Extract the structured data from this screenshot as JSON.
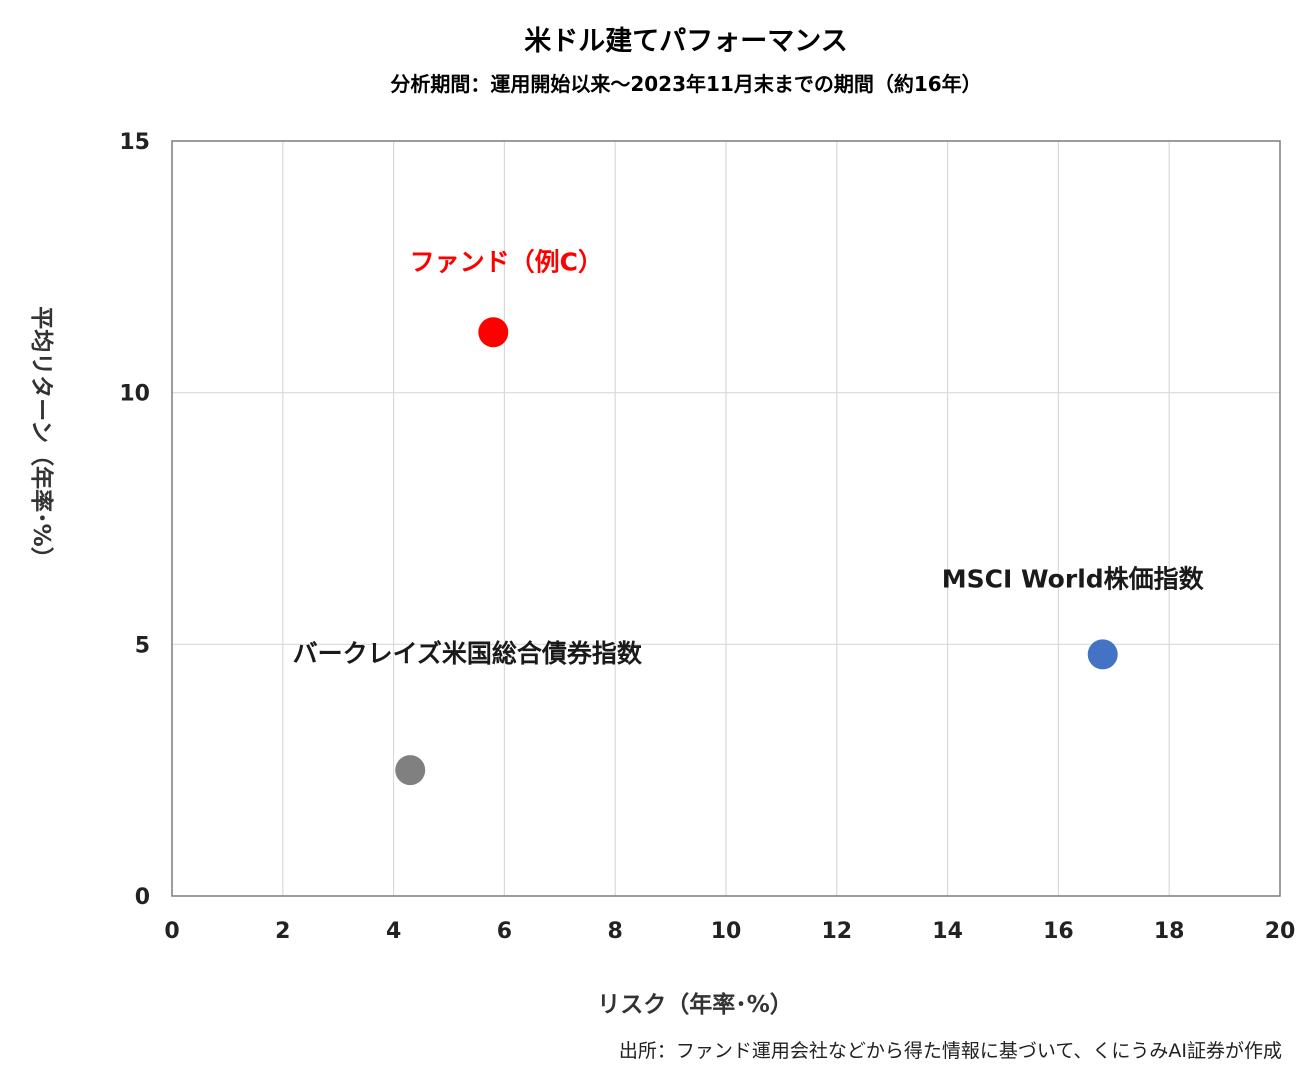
{
  "chart_data": {
    "type": "scatter",
    "title": "米ドル建てパフォーマンス",
    "subtitle": "分析期間：運用開始以来～2023年11月末までの期間（約16年）",
    "xlabel": "リスク（年率･%）",
    "ylabel": "平均リターン（年率･%）",
    "xlim": [
      0,
      20
    ],
    "ylim": [
      0,
      15
    ],
    "x_ticks": [
      0,
      2,
      4,
      6,
      8,
      10,
      12,
      14,
      16,
      18,
      20
    ],
    "y_ticks": [
      0,
      5,
      10,
      15
    ],
    "grid": true,
    "points": [
      {
        "label": "ファンド（例C）",
        "x": 5.8,
        "y": 11.2,
        "color": "#ff0000",
        "label_color": "#ff0000"
      },
      {
        "label": "MSCI World株価指数",
        "x": 16.8,
        "y": 4.8,
        "color": "#4472c4",
        "label_color": "#1a1a1a"
      },
      {
        "label": "バークレイズ米国総合債券指数",
        "x": 4.3,
        "y": 2.5,
        "color": "#808080",
        "label_color": "#1a1a1a"
      }
    ]
  },
  "source_note": "出所：ファンド運用会社などから得た情報に基づいて、くにうみAI証券が作成"
}
